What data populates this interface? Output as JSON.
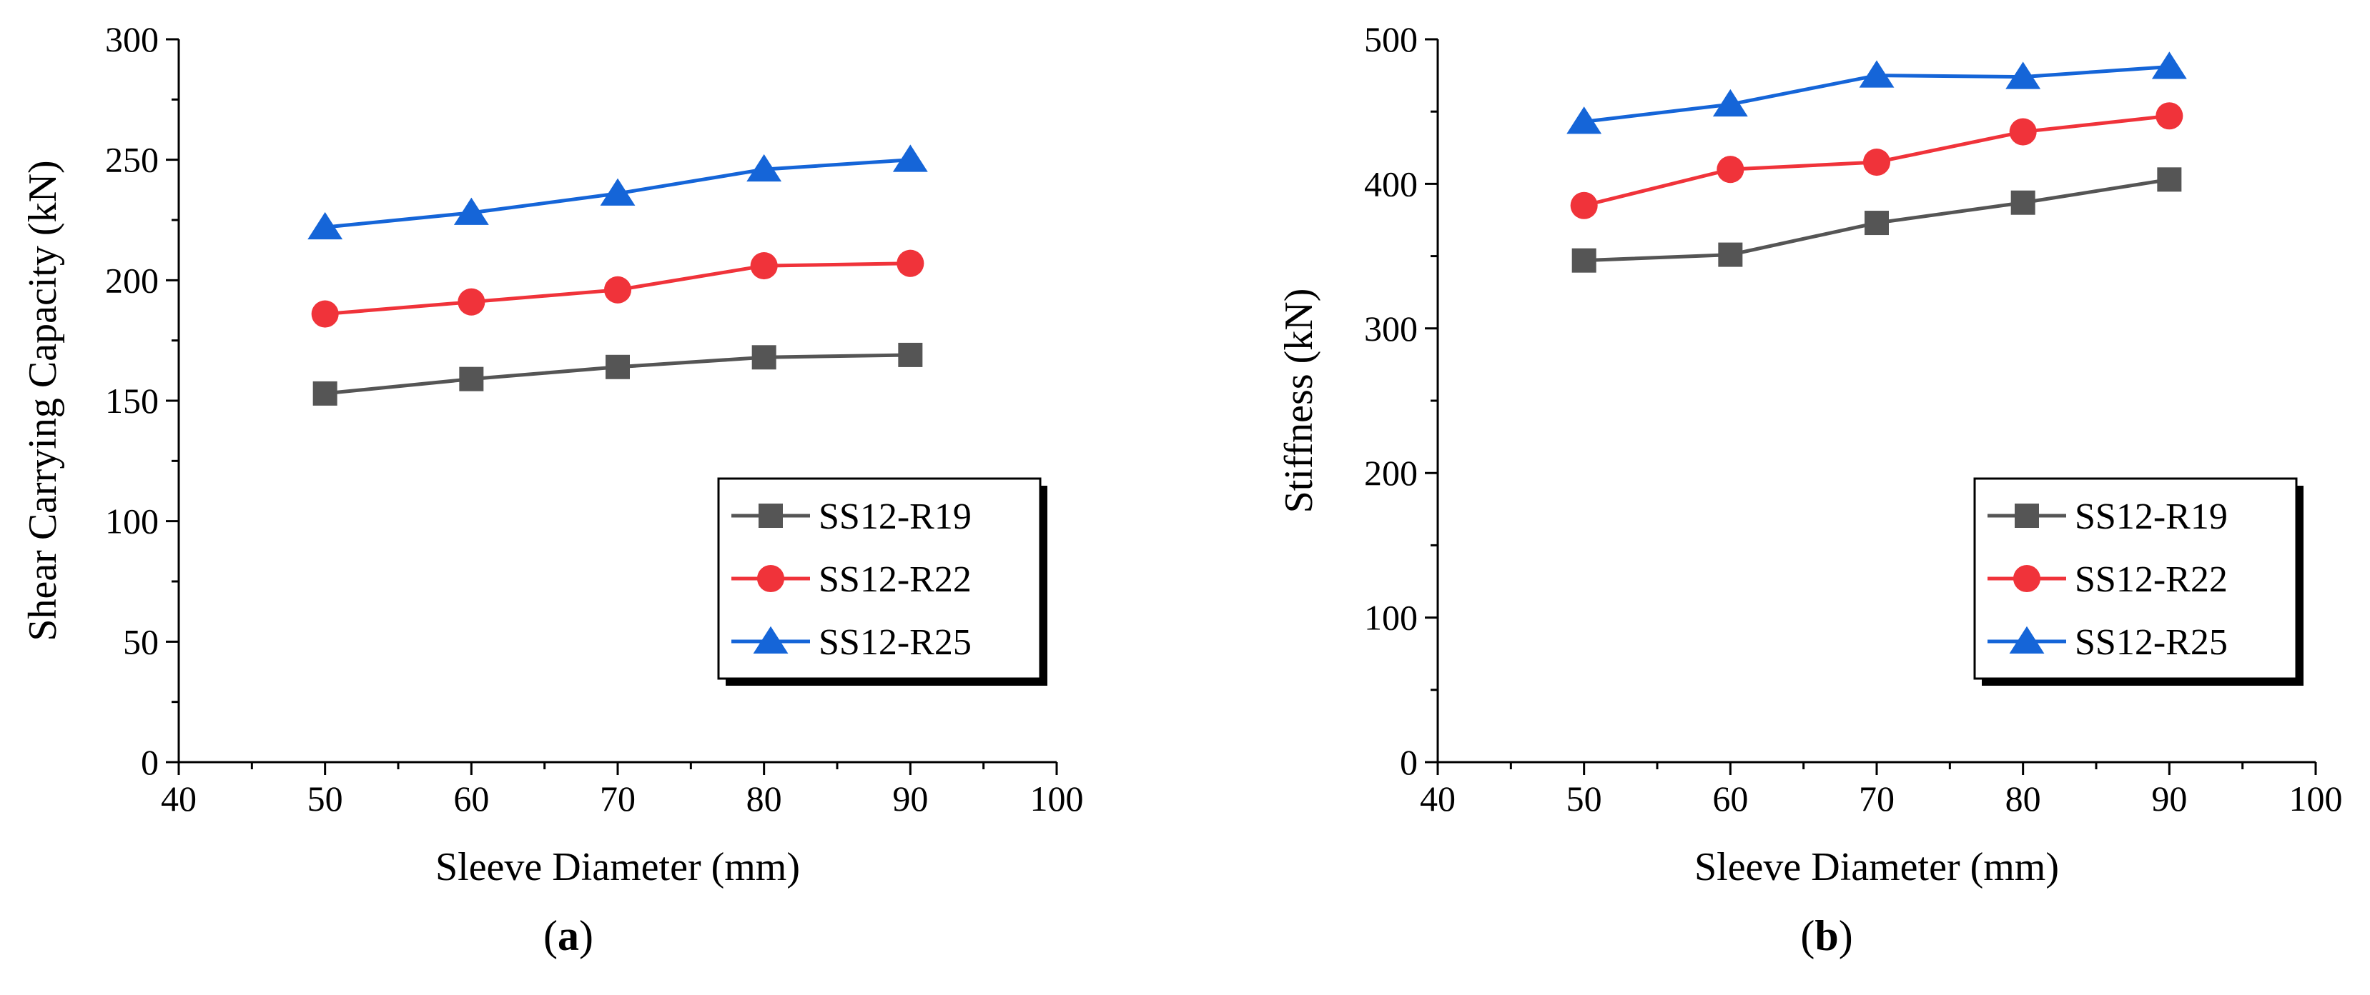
{
  "chart_data": [
    {
      "type": "line",
      "panel_label": "a",
      "xlabel": "Sleeve Diameter (mm)",
      "ylabel": "Shear Carrying Capacity (kN)",
      "xlim": [
        40,
        100
      ],
      "ylim": [
        0,
        300
      ],
      "xticks": [
        40,
        50,
        60,
        70,
        80,
        90,
        100
      ],
      "yticks": [
        0,
        50,
        100,
        150,
        200,
        250,
        300
      ],
      "legend_position": "lower-right",
      "x": [
        50,
        60,
        70,
        80,
        90
      ],
      "series": [
        {
          "name": "SS12-R19",
          "marker": "square",
          "color": "#555555",
          "values": [
            153,
            159,
            164,
            168,
            169
          ]
        },
        {
          "name": "SS12-R22",
          "marker": "circle",
          "color": "#f0333a",
          "values": [
            186,
            191,
            196,
            206,
            207
          ]
        },
        {
          "name": "SS12-R25",
          "marker": "triangle",
          "color": "#1565d8",
          "values": [
            222,
            228,
            236,
            246,
            250
          ]
        }
      ]
    },
    {
      "type": "line",
      "panel_label": "b",
      "xlabel": "Sleeve Diameter (mm)",
      "ylabel": "Stiffness (kN)",
      "xlim": [
        40,
        100
      ],
      "ylim": [
        0,
        500
      ],
      "xticks": [
        40,
        50,
        60,
        70,
        80,
        90,
        100
      ],
      "yticks": [
        0,
        100,
        200,
        300,
        400,
        500
      ],
      "legend_position": "lower-right",
      "x": [
        50,
        60,
        70,
        80,
        90
      ],
      "series": [
        {
          "name": "SS12-R19",
          "marker": "square",
          "color": "#555555",
          "values": [
            347,
            351,
            373,
            387,
            403
          ]
        },
        {
          "name": "SS12-R22",
          "marker": "circle",
          "color": "#f0333a",
          "values": [
            385,
            410,
            415,
            436,
            447
          ]
        },
        {
          "name": "SS12-R25",
          "marker": "triangle",
          "color": "#1565d8",
          "values": [
            443,
            455,
            475,
            474,
            481
          ]
        }
      ]
    }
  ]
}
